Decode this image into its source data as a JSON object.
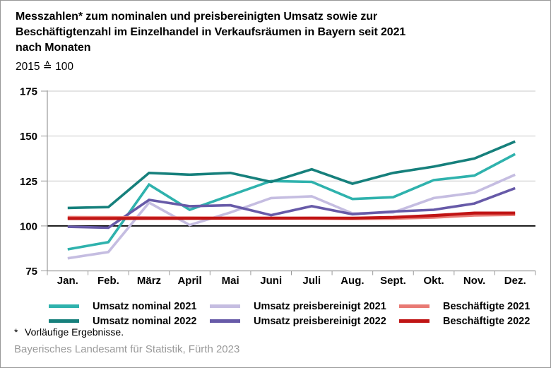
{
  "header": {
    "title": "Messzahlen* zum nominalen und preisbereinigten Umsatz sowie zur\nBeschäftigtenzahl im Einzelhandel in Verkaufsräumen in Bayern seit 2021\nnach Monaten",
    "subtitle": "2015 ≙ 100"
  },
  "chart_data": {
    "type": "line",
    "title": "Messzahlen zum nominalen und preisbereinigten Umsatz sowie zur Beschäftigtenzahl im Einzelhandel in Verkaufsräumen in Bayern seit 2021 nach Monaten",
    "subtitle": "2015 ≙ 100",
    "categories": [
      "Jan.",
      "Feb.",
      "März",
      "April",
      "Mai",
      "Juni",
      "Juli",
      "Aug.",
      "Sept.",
      "Okt.",
      "Nov.",
      "Dez."
    ],
    "series": [
      {
        "name": "Umsatz nominal 2021",
        "color": "#2fb2ad",
        "stroke_width": 3.6,
        "values": [
          87,
          91,
          123,
          109,
          117,
          125,
          124.5,
          115,
          116,
          125.5,
          128,
          140
        ]
      },
      {
        "name": "Umsatz nominal 2022",
        "color": "#16807c",
        "stroke_width": 3.6,
        "values": [
          110,
          110.5,
          129.5,
          128.5,
          129.5,
          124.5,
          131.5,
          123.5,
          129.5,
          133,
          137.5,
          147
        ]
      },
      {
        "name": "Umsatz preisbereinigt 2021",
        "color": "#c5bde1",
        "stroke_width": 3.6,
        "values": [
          82,
          85.5,
          113,
          100.5,
          107.5,
          115.5,
          116.5,
          107,
          107.5,
          115.5,
          118.5,
          128.5
        ]
      },
      {
        "name": "Umsatz preisbereinigt 2022",
        "color": "#675aa8",
        "stroke_width": 3.6,
        "values": [
          99.5,
          99,
          114.5,
          111,
          111.5,
          106,
          111,
          106.5,
          108,
          109,
          112.5,
          121
        ]
      },
      {
        "name": "Beschäftigte 2021",
        "color": "#e87a74",
        "stroke_width": 4.2,
        "values": [
          104.8,
          104.7,
          104.6,
          104.5,
          104.4,
          104.3,
          104.2,
          104.1,
          104.2,
          104.8,
          106,
          106.3
        ]
      },
      {
        "name": "Beschäftigte 2022",
        "color": "#c01414",
        "stroke_width": 4.2,
        "values": [
          104.1,
          104.1,
          104.2,
          104.2,
          104.3,
          104.3,
          104.4,
          104.3,
          104.8,
          105.8,
          107.2,
          107.2
        ]
      }
    ],
    "xlabel": "",
    "ylabel": "",
    "ylim": [
      75,
      175
    ],
    "yticks": [
      75,
      100,
      125,
      150,
      175
    ],
    "baseline": 100,
    "grid": true,
    "grid_color": "#c9c9c9",
    "baseline_color": "#000000",
    "axis_color": "#999999",
    "legend_position": "bottom"
  },
  "footnote": {
    "marker": "*",
    "text": "Vorläufige Ergebnisse."
  },
  "source": "Bayerisches Landesamt für Statistik, Fürth 2023"
}
